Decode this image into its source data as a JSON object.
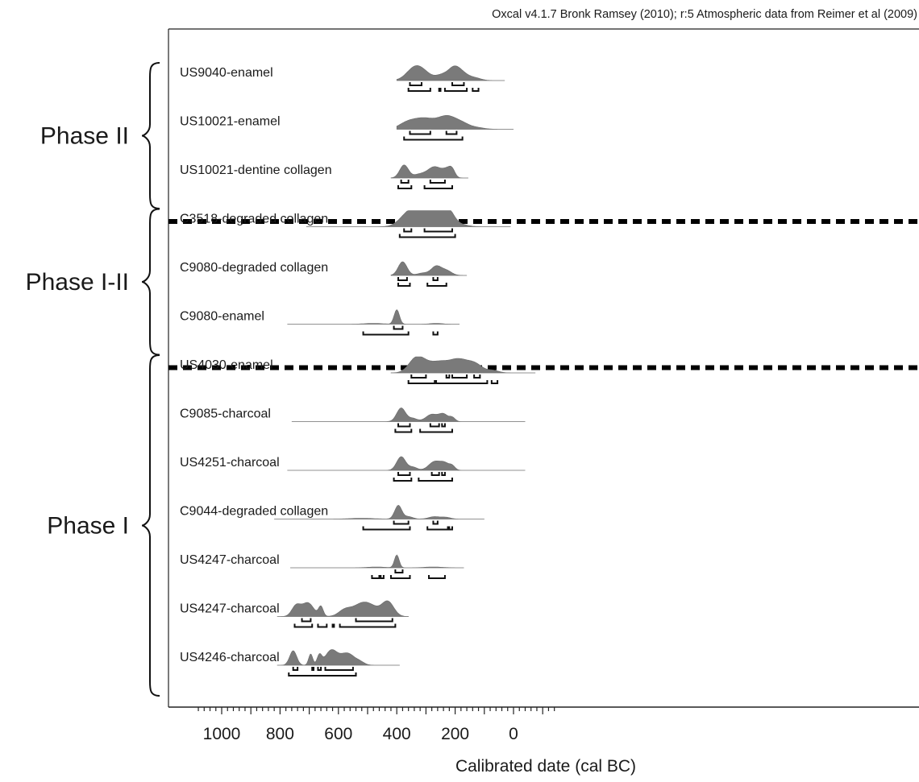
{
  "chart_data": {
    "type": "density-ridge",
    "caption": "Oxcal v4.1.7 Bronk Ramsey (2010); r:5 Atmospheric data from Reimer et al (2009)",
    "xlabel": "Calibrated date (cal BC)",
    "xlim": [
      1080,
      -150
    ],
    "x_ticks": [
      1000,
      800,
      600,
      400,
      200,
      0
    ],
    "x_tick_labels": [
      "1000",
      "800",
      "600",
      "400",
      "200",
      "0"
    ],
    "x_minor_tick_step": 20,
    "phase_separator_after_rows": [
      2,
      5
    ],
    "phases": [
      {
        "label": "Phase II",
        "rows": [
          0,
          2
        ]
      },
      {
        "label": "Phase I-II",
        "rows": [
          3,
          5
        ]
      },
      {
        "label": "Phase I",
        "rows": [
          6,
          12
        ]
      }
    ],
    "samples": [
      {
        "label": "US9040-enamel",
        "range": [
          400,
          30
        ],
        "peaks": [
          [
            340,
            13,
            28
          ],
          [
            310,
            8,
            30
          ],
          [
            245,
            6,
            20
          ],
          [
            205,
            14,
            20
          ],
          [
            175,
            8,
            22
          ],
          [
            130,
            3,
            20
          ]
        ],
        "ranges_68": [
          [
            355,
            315
          ],
          [
            210,
            170
          ]
        ],
        "ranges_95": [
          [
            360,
            285
          ],
          [
            255,
            250
          ],
          [
            235,
            160
          ],
          [
            140,
            120
          ]
        ]
      },
      {
        "label": "US10021-enamel",
        "range": [
          400,
          0
        ],
        "peaks": [
          [
            370,
            4,
            25
          ],
          [
            310,
            14,
            45
          ],
          [
            225,
            14,
            30
          ],
          [
            175,
            6,
            25
          ],
          [
            125,
            2,
            25
          ]
        ],
        "ranges_68": [
          [
            355,
            285
          ],
          [
            230,
            195
          ]
        ],
        "ranges_95": [
          [
            375,
            175
          ]
        ]
      },
      {
        "label": "US10021-dentine collagen",
        "range": [
          420,
          155
        ],
        "peaks": [
          [
            375,
            16,
            15
          ],
          [
            325,
            4,
            20
          ],
          [
            270,
            14,
            25
          ],
          [
            225,
            9,
            15
          ],
          [
            210,
            7,
            10
          ]
        ],
        "ranges_68": [
          [
            385,
            360
          ],
          [
            285,
            235
          ]
        ],
        "ranges_95": [
          [
            395,
            350
          ],
          [
            305,
            210
          ]
        ]
      },
      {
        "label": "C3518-degraded collagen",
        "range": [
          710,
          10
        ],
        "peaks": [
          [
            360,
            15,
            30
          ],
          [
            320,
            11,
            30
          ],
          [
            270,
            17,
            40
          ],
          [
            225,
            15,
            20
          ],
          [
            180,
            2,
            25
          ]
        ],
        "ranges_68": [
          [
            375,
            350
          ],
          [
            305,
            210
          ]
        ],
        "ranges_95": [
          [
            390,
            200
          ]
        ]
      },
      {
        "label": "C9080-degraded collagen",
        "range": [
          420,
          160
        ],
        "peaks": [
          [
            380,
            17,
            15
          ],
          [
            310,
            3,
            20
          ],
          [
            265,
            11,
            17
          ],
          [
            230,
            6,
            18
          ]
        ],
        "ranges_68": [
          [
            395,
            365
          ],
          [
            275,
            260
          ]
        ],
        "ranges_95": [
          [
            395,
            355
          ],
          [
            295,
            230
          ]
        ]
      },
      {
        "label": "C9080-enamel",
        "range": [
          775,
          185
        ],
        "peaks": [
          [
            480,
            1,
            30
          ],
          [
            400,
            18,
            9
          ],
          [
            265,
            1,
            20
          ]
        ],
        "ranges_68": [
          [
            410,
            380
          ]
        ],
        "ranges_95": [
          [
            515,
            360
          ],
          [
            275,
            260
          ]
        ]
      },
      {
        "label": "US4030-enamel",
        "range": [
          420,
          -75
        ],
        "peaks": [
          [
            335,
            16,
            25
          ],
          [
            295,
            10,
            30
          ],
          [
            250,
            8,
            25
          ],
          [
            190,
            17,
            35
          ],
          [
            130,
            9,
            25
          ],
          [
            70,
            3,
            20
          ]
        ],
        "ranges_68": [
          [
            350,
            300
          ],
          [
            230,
            220
          ],
          [
            210,
            160
          ],
          [
            135,
            115
          ]
        ],
        "ranges_95": [
          [
            360,
            270
          ],
          [
            265,
            90
          ],
          [
            75,
            55
          ]
        ]
      },
      {
        "label": "C9085-charcoal",
        "range": [
          760,
          -40
        ],
        "peaks": [
          [
            385,
            17,
            15
          ],
          [
            345,
            4,
            15
          ],
          [
            280,
            9,
            20
          ],
          [
            240,
            9,
            15
          ],
          [
            210,
            5,
            10
          ]
        ],
        "ranges_68": [
          [
            395,
            355
          ],
          [
            285,
            255
          ],
          [
            245,
            235
          ]
        ],
        "ranges_95": [
          [
            405,
            350
          ],
          [
            320,
            210
          ]
        ]
      },
      {
        "label": "US4251-charcoal",
        "range": [
          775,
          -40
        ],
        "peaks": [
          [
            385,
            17,
            15
          ],
          [
            345,
            4,
            15
          ],
          [
            270,
            11,
            20
          ],
          [
            235,
            8,
            15
          ],
          [
            210,
            5,
            10
          ]
        ],
        "ranges_68": [
          [
            395,
            355
          ],
          [
            280,
            255
          ],
          [
            245,
            235
          ]
        ],
        "ranges_95": [
          [
            410,
            350
          ],
          [
            325,
            210
          ]
        ]
      },
      {
        "label": "C9044-degraded collagen",
        "range": [
          820,
          100
        ],
        "peaks": [
          [
            520,
            1,
            40
          ],
          [
            395,
            17,
            12
          ],
          [
            360,
            3,
            15
          ],
          [
            270,
            3,
            20
          ],
          [
            230,
            2,
            15
          ]
        ],
        "ranges_68": [
          [
            410,
            360
          ],
          [
            275,
            260
          ]
        ],
        "ranges_95": [
          [
            515,
            355
          ],
          [
            295,
            225
          ],
          [
            220,
            210
          ]
        ]
      },
      {
        "label": "US4247-charcoal",
        "range": [
          765,
          170
        ],
        "peaks": [
          [
            470,
            1,
            30
          ],
          [
            400,
            16,
            8
          ],
          [
            275,
            1,
            30
          ]
        ],
        "ranges_68": [
          [
            405,
            380
          ]
        ],
        "ranges_95": [
          [
            485,
            460
          ],
          [
            455,
            445
          ],
          [
            420,
            355
          ],
          [
            290,
            235
          ]
        ]
      },
      {
        "label": "US4247-charcoal",
        "range": [
          810,
          360
        ],
        "peaks": [
          [
            745,
            13,
            15
          ],
          [
            705,
            17,
            20
          ],
          [
            660,
            12,
            8
          ],
          [
            580,
            6,
            20
          ],
          [
            510,
            18,
            40
          ],
          [
            430,
            17,
            20
          ]
        ],
        "ranges_68": [
          [
            725,
            695
          ],
          [
            540,
            415
          ]
        ],
        "ranges_95": [
          [
            750,
            690
          ],
          [
            670,
            640
          ],
          [
            620,
            615
          ],
          [
            595,
            405
          ]
        ]
      },
      {
        "label": "US4246-charcoal",
        "range": [
          810,
          390
        ],
        "peaks": [
          [
            755,
            18,
            12
          ],
          [
            695,
            14,
            7
          ],
          [
            665,
            12,
            8
          ],
          [
            625,
            18,
            20
          ],
          [
            570,
            15,
            25
          ],
          [
            525,
            3,
            15
          ]
        ],
        "ranges_68": [
          [
            755,
            740
          ],
          [
            690,
            685
          ],
          [
            670,
            660
          ],
          [
            645,
            550
          ]
        ],
        "ranges_95": [
          [
            770,
            540
          ]
        ]
      }
    ]
  }
}
